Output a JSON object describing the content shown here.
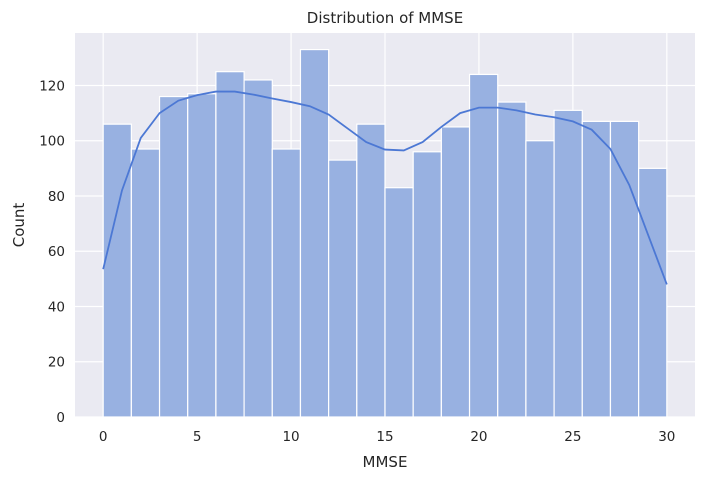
{
  "chart_data": {
    "type": "bar",
    "title": "Distribution of MMSE",
    "xlabel": "MMSE",
    "ylabel": "Count",
    "xlim": [
      -1.5,
      31.5
    ],
    "ylim": [
      0,
      139
    ],
    "xticks": [
      "0",
      "5",
      "10",
      "15",
      "20",
      "25",
      "30"
    ],
    "yticks": [
      "0",
      "20",
      "40",
      "60",
      "80",
      "100",
      "120"
    ],
    "grid": true,
    "bins": [
      {
        "x0": 0.0,
        "x1": 1.5,
        "count": 106
      },
      {
        "x0": 1.5,
        "x1": 3.0,
        "count": 97
      },
      {
        "x0": 3.0,
        "x1": 4.5,
        "count": 116
      },
      {
        "x0": 4.5,
        "x1": 6.0,
        "count": 117
      },
      {
        "x0": 6.0,
        "x1": 7.5,
        "count": 125
      },
      {
        "x0": 7.5,
        "x1": 9.0,
        "count": 122
      },
      {
        "x0": 9.0,
        "x1": 10.5,
        "count": 97
      },
      {
        "x0": 10.5,
        "x1": 12.0,
        "count": 133
      },
      {
        "x0": 12.0,
        "x1": 13.5,
        "count": 93
      },
      {
        "x0": 13.5,
        "x1": 15.0,
        "count": 106
      },
      {
        "x0": 15.0,
        "x1": 16.5,
        "count": 83
      },
      {
        "x0": 16.5,
        "x1": 18.0,
        "count": 96
      },
      {
        "x0": 18.0,
        "x1": 19.5,
        "count": 105
      },
      {
        "x0": 19.5,
        "x1": 21.0,
        "count": 124
      },
      {
        "x0": 21.0,
        "x1": 22.5,
        "count": 114
      },
      {
        "x0": 22.5,
        "x1": 24.0,
        "count": 100
      },
      {
        "x0": 24.0,
        "x1": 25.5,
        "count": 111
      },
      {
        "x0": 25.5,
        "x1": 27.0,
        "count": 107
      },
      {
        "x0": 27.0,
        "x1": 28.5,
        "count": 107
      },
      {
        "x0": 28.5,
        "x1": 30.0,
        "count": 90
      }
    ],
    "kde": {
      "x": [
        0,
        1,
        2,
        3,
        4,
        5,
        6,
        7,
        8,
        9,
        10,
        11,
        12,
        13,
        14,
        15,
        16,
        17,
        18,
        19,
        20,
        21,
        22,
        23,
        24,
        25,
        26,
        27,
        28,
        29,
        30
      ],
      "y": [
        53.5,
        82,
        101,
        110,
        114.5,
        116.5,
        117.8,
        117.8,
        116.7,
        115.3,
        114,
        112.5,
        109.5,
        104.5,
        99.5,
        96.8,
        96.5,
        99.5,
        105,
        110,
        112,
        112,
        111,
        109.5,
        108.5,
        107,
        104,
        97,
        84,
        66,
        48
      ]
    },
    "colors": {
      "bar_fill": "#98b1e1",
      "bar_edge": "#ffffff",
      "kde_line": "#4c78d4",
      "plot_bg": "#eaeaf2",
      "grid": "#ffffff",
      "text": "#262626"
    }
  }
}
